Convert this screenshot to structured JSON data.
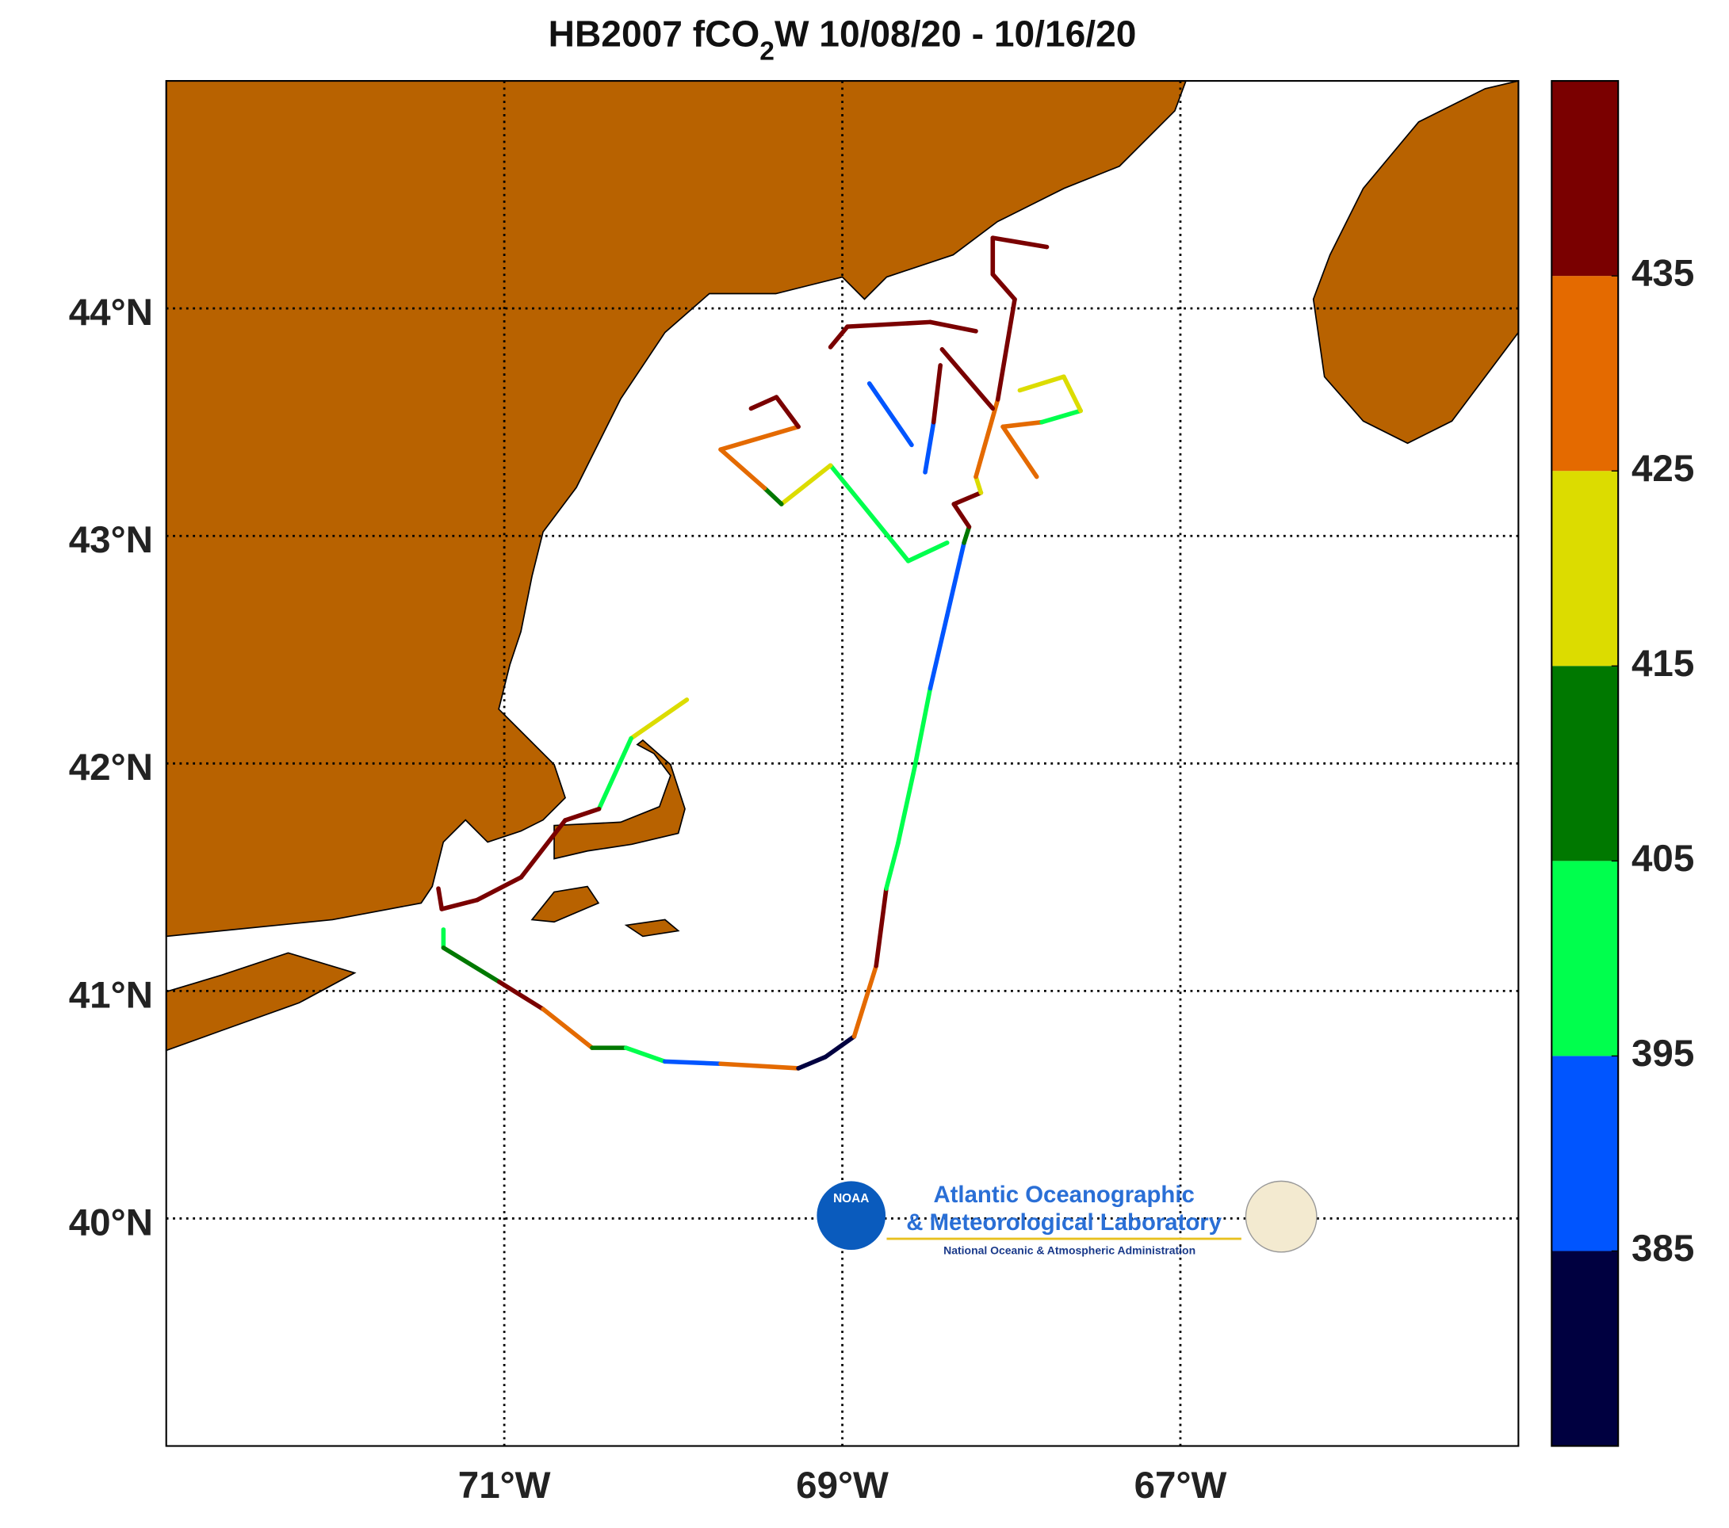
{
  "map": {
    "title": {
      "prefix": "HB2007 fCO",
      "subscript": "2",
      "suffix": "W 10/08/20 - 10/16/20"
    },
    "xlim": [
      -73,
      -65
    ],
    "ylim": [
      39,
      45
    ],
    "xticks": [
      {
        "value": -71,
        "label": "71°W"
      },
      {
        "value": -69,
        "label": "69°W"
      },
      {
        "value": -67,
        "label": "67°W"
      }
    ],
    "yticks": [
      {
        "value": 40,
        "label": "40°N"
      },
      {
        "value": 41,
        "label": "41°N"
      },
      {
        "value": 42,
        "label": "42°N"
      },
      {
        "value": 43,
        "label": "43°N"
      },
      {
        "value": 44,
        "label": "44°N"
      }
    ],
    "grid": true,
    "land_color": "#b86200",
    "colorbar": {
      "clim": [
        375,
        445
      ],
      "ticks": [
        385,
        395,
        405,
        415,
        425,
        435
      ],
      "colors": [
        "#000040",
        "#0055ff",
        "#00ff4d",
        "#007800",
        "#dcdc00",
        "#e46a00",
        "#7a0000"
      ]
    },
    "track": {
      "lon": [
        -71.36,
        -71.36,
        -71.03,
        -70.77,
        -70.48,
        -70.28,
        -70.05,
        -69.72,
        -69.26,
        -69.1,
        -68.93,
        -68.8,
        -68.74,
        -68.67,
        -68.57,
        -68.48,
        -68.38,
        -68.28,
        -68.25,
        -68.34,
        -68.18,
        -68.21,
        -68.08,
        -67.98,
        -68.11,
        -68.11,
        -67.79,
        null,
        -68.38,
        -68.61,
        -69.07,
        -69.36,
        -69.46,
        -69.72,
        -69.26,
        -69.39,
        -69.54,
        null,
        -68.51,
        -68.46,
        -68.42,
        null,
        -68.84,
        -68.59,
        null,
        -69.07,
        -68.97,
        -68.48,
        -68.21,
        null,
        -68.41,
        -68.11,
        null,
        -67.85,
        -68.05,
        -67.82,
        -67.59,
        -67.69,
        -67.95,
        null,
        -69.92,
        -70.25,
        -70.44,
        -70.64,
        -70.9,
        -71.16,
        -71.37,
        -71.39
      ],
      "lat": [
        41.27,
        41.19,
        41.04,
        40.92,
        40.75,
        40.75,
        40.69,
        40.68,
        40.66,
        40.71,
        40.8,
        41.11,
        41.45,
        41.65,
        41.99,
        42.33,
        42.65,
        42.97,
        43.04,
        43.14,
        43.19,
        43.26,
        43.6,
        44.04,
        44.15,
        44.31,
        44.27,
        null,
        42.97,
        42.89,
        43.31,
        43.14,
        43.21,
        43.38,
        43.48,
        43.61,
        43.56,
        null,
        43.28,
        43.5,
        43.75,
        null,
        43.67,
        43.4,
        null,
        43.83,
        43.92,
        43.94,
        43.9,
        null,
        43.82,
        43.56,
        null,
        43.26,
        43.48,
        43.5,
        43.55,
        43.7,
        43.64,
        null,
        42.28,
        42.11,
        41.8,
        41.75,
        41.5,
        41.4,
        41.36,
        41.45
      ],
      "fco2": [
        440,
        400,
        410,
        440,
        430,
        410,
        400,
        390,
        430,
        380,
        380,
        430,
        440,
        400,
        400,
        400,
        390,
        390,
        410,
        440,
        440,
        420,
        430,
        440,
        440,
        440,
        440,
        null,
        410,
        400,
        400,
        420,
        410,
        430,
        430,
        440,
        440,
        null,
        400,
        390,
        440,
        null,
        440,
        390,
        null,
        440,
        440,
        440,
        440,
        null,
        440,
        440,
        null,
        410,
        430,
        430,
        400,
        420,
        420,
        null,
        410,
        420,
        400,
        440,
        440,
        440,
        440,
        440
      ]
    },
    "logo": {
      "badge": "NOAA",
      "line1": "Atlantic Oceanographic",
      "line2": "& Meteorological Laboratory",
      "line3": "National Oceanic & Atmospheric Administration"
    }
  }
}
